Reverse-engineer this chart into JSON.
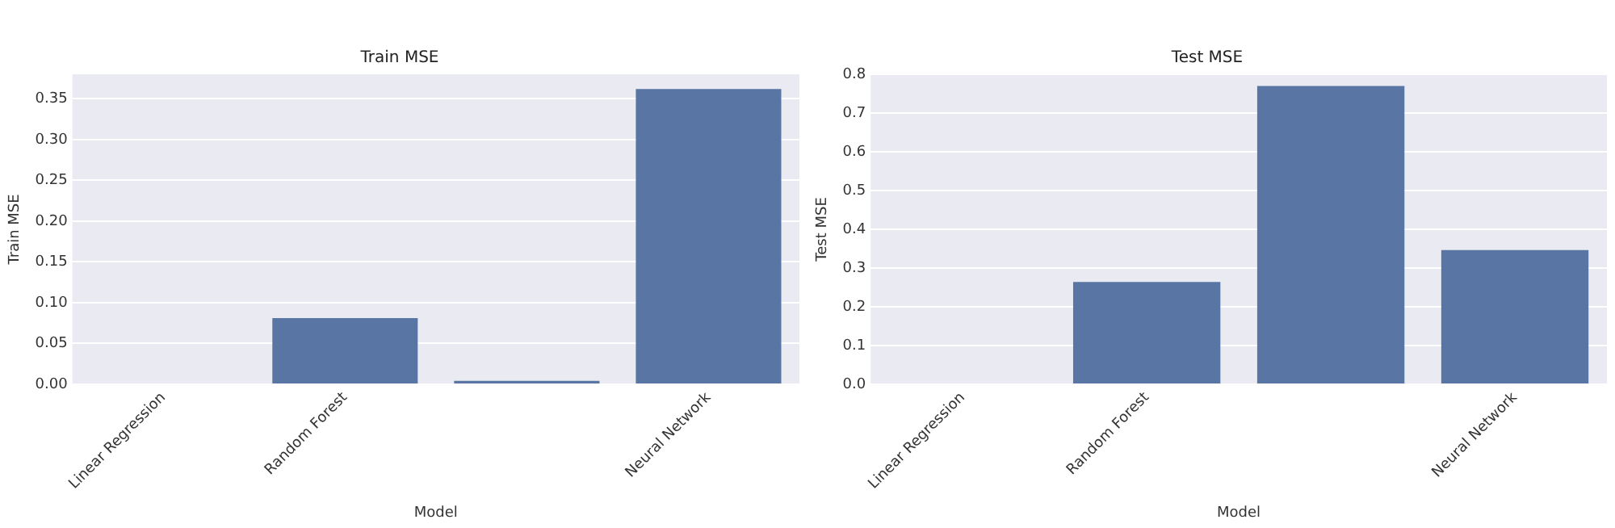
{
  "chart_data": [
    {
      "type": "bar",
      "title": "Train MSE",
      "xlabel": "Model",
      "ylabel": "Train MSE",
      "categories": [
        "Linear Regression",
        "Random Forest",
        null,
        "Neural Network"
      ],
      "values": [
        0,
        0.081,
        0.004,
        0.362
      ],
      "color": "#5975a4",
      "ylim": [
        0,
        0.38
      ],
      "yticks": [
        {
          "value": 0,
          "label": "0.00"
        },
        0.05,
        {
          "value": 0.1,
          "label": "0.10"
        },
        0.15,
        {
          "value": 0.2,
          "label": "0.20"
        },
        0.25,
        {
          "value": 0.3,
          "label": "0.30"
        },
        0.35
      ],
      "grid": "y"
    },
    {
      "type": "bar",
      "title": "Test MSE",
      "xlabel": "Model",
      "ylabel": "Test MSE",
      "categories": [
        "Linear Regression",
        "Random Forest",
        null,
        "Neural Network"
      ],
      "values": [
        0,
        0.264,
        0.77,
        0.346
      ],
      "color": "#5975a4",
      "ylim": [
        0,
        0.8
      ],
      "yticks": [
        {
          "value": 0,
          "label": "0.0"
        },
        0.1,
        0.2,
        0.3,
        0.4,
        0.5,
        0.6,
        0.7,
        0.8
      ],
      "grid": "y"
    }
  ]
}
